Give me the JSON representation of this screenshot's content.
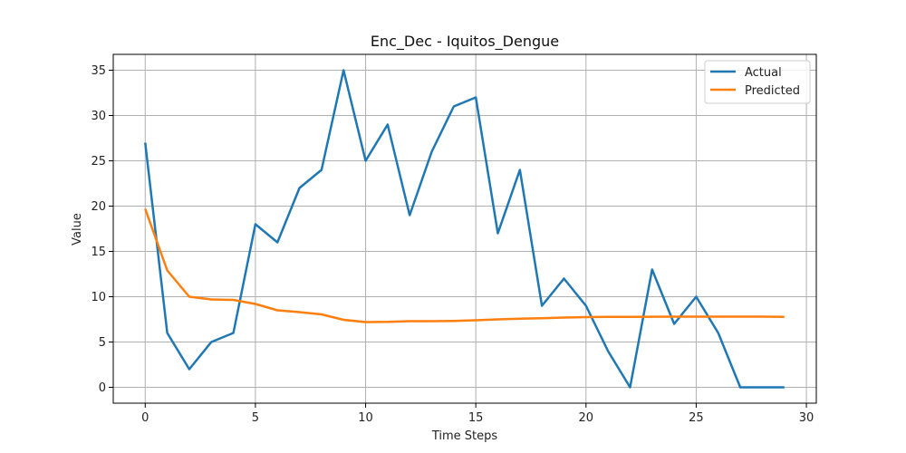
{
  "chart_data": {
    "type": "line",
    "title": "Enc_Dec - Iquitos_Dengue",
    "xlabel": "Time Steps",
    "ylabel": "Value",
    "xlim": [
      -1.45,
      30.45
    ],
    "ylim": [
      -1.75,
      36.75
    ],
    "xticks": [
      0,
      5,
      10,
      15,
      20,
      25,
      30
    ],
    "yticks": [
      0,
      5,
      10,
      15,
      20,
      25,
      30,
      35
    ],
    "grid": true,
    "legend_position": "top-right",
    "x": [
      0,
      1,
      2,
      3,
      4,
      5,
      6,
      7,
      8,
      9,
      10,
      11,
      12,
      13,
      14,
      15,
      16,
      17,
      18,
      19,
      20,
      21,
      22,
      23,
      24,
      25,
      26,
      27,
      28,
      29
    ],
    "series": [
      {
        "name": "Actual",
        "color": "#1f77b4",
        "values": [
          27,
          6,
          2,
          5,
          6,
          18,
          16,
          22,
          24,
          35,
          25,
          29,
          19,
          26,
          31,
          32,
          17,
          24,
          9,
          12,
          9,
          4,
          0,
          13,
          7,
          10,
          6,
          0,
          0,
          0
        ]
      },
      {
        "name": "Predicted",
        "color": "#ff7f0e",
        "values": [
          19.7,
          12.9,
          10.0,
          9.7,
          9.65,
          9.2,
          8.5,
          8.3,
          8.05,
          7.45,
          7.2,
          7.22,
          7.3,
          7.3,
          7.33,
          7.4,
          7.5,
          7.57,
          7.63,
          7.7,
          7.75,
          7.78,
          7.78,
          7.79,
          7.8,
          7.8,
          7.8,
          7.8,
          7.8,
          7.78
        ]
      }
    ]
  }
}
